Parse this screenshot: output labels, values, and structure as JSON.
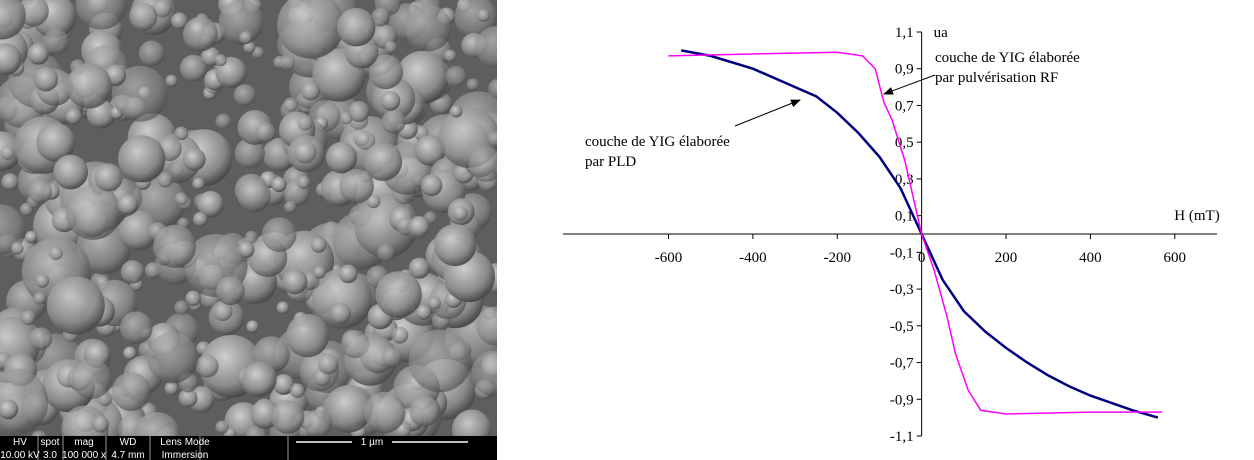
{
  "sem_image": {
    "footer_labels": [
      "HV",
      "spot",
      "mag",
      "WD",
      "Lens Mode"
    ],
    "footer_values": [
      "10.00 kV",
      "3.0",
      "100 000 x",
      "4.7 mm",
      "Immersion"
    ],
    "scale_bar": "1 µm"
  },
  "chart_data": {
    "type": "line",
    "x_label": "H (mT)",
    "y_label": "ua",
    "xlim": [
      -850,
      700
    ],
    "xticks": [
      -600,
      -400,
      -200,
      0,
      200,
      400,
      600
    ],
    "ylim": [
      -1.1,
      1.1
    ],
    "yticks": [
      {
        "value": 1.1,
        "label": "1,1"
      },
      {
        "value": 0.9,
        "label": "0,9"
      },
      {
        "value": 0.7,
        "label": "0,7"
      },
      {
        "value": 0.5,
        "label": "0,5"
      },
      {
        "value": 0.3,
        "label": "0,3"
      },
      {
        "value": 0.1,
        "label": "0,1"
      },
      {
        "value": -0.1,
        "label": "-0,1"
      },
      {
        "value": -0.3,
        "label": "-0,3"
      },
      {
        "value": -0.5,
        "label": "-0,5"
      },
      {
        "value": -0.7,
        "label": "-0,7"
      },
      {
        "value": -0.9,
        "label": "-0,9"
      },
      {
        "value": -1.1,
        "label": "-1,1"
      }
    ],
    "series": [
      {
        "name": "couche de YIG élaborée par PLD",
        "color": "#000080",
        "x": [
          -570,
          -500,
          -400,
          -300,
          -250,
          -200,
          -150,
          -100,
          -50,
          0,
          50,
          100,
          150,
          200,
          250,
          300,
          350,
          400,
          450,
          500,
          560
        ],
        "values": [
          1.0,
          0.97,
          0.9,
          0.8,
          0.75,
          0.66,
          0.55,
          0.42,
          0.25,
          0.0,
          -0.25,
          -0.42,
          -0.53,
          -0.62,
          -0.7,
          -0.77,
          -0.83,
          -0.88,
          -0.92,
          -0.96,
          -1.0
        ]
      },
      {
        "name": "couche de YIG élaborée par pulvérisation RF",
        "color": "#ff00ff",
        "x": [
          -600,
          -400,
          -200,
          -140,
          -110,
          -90,
          -70,
          -40,
          -10,
          0,
          30,
          60,
          80,
          110,
          140,
          200,
          400,
          570
        ],
        "values": [
          0.97,
          0.98,
          0.99,
          0.97,
          0.9,
          0.72,
          0.62,
          0.4,
          0.1,
          0.0,
          -0.2,
          -0.45,
          -0.65,
          -0.85,
          -0.96,
          -0.98,
          -0.97,
          -0.97
        ]
      }
    ],
    "annotations": [
      {
        "lines": [
          "couche de YIG élaborée",
          "par pulvérisation RF"
        ]
      },
      {
        "lines": [
          "couche de YIG élaborée",
          "par PLD"
        ]
      }
    ]
  }
}
